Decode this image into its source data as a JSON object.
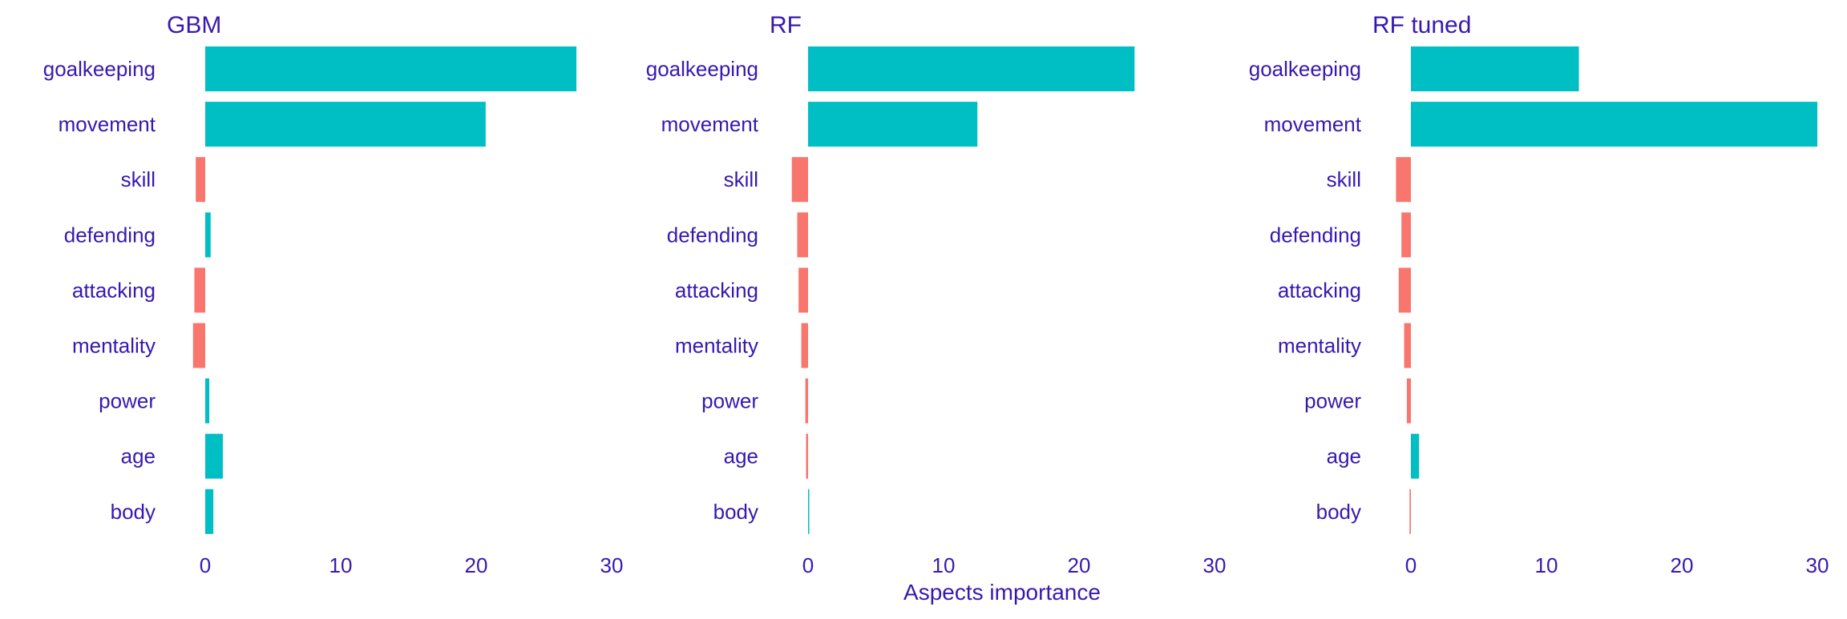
{
  "chart_data": {
    "type": "bar",
    "orientation": "horizontal",
    "xlabel": "Aspects importance",
    "xlim": [
      -1.5,
      30
    ],
    "xticks": [
      0,
      10,
      20,
      30
    ],
    "grid": false,
    "legend": "none",
    "colors": {
      "positive": "#00BFC4",
      "negative": "#F8766D",
      "text": "#3719B0"
    },
    "categories": [
      "goalkeeping",
      "movement",
      "skill",
      "defending",
      "attacking",
      "mentality",
      "power",
      "age",
      "body"
    ],
    "panels": [
      {
        "title": "GBM",
        "values": [
          27.4,
          20.7,
          -0.7,
          0.4,
          -0.8,
          -0.9,
          0.3,
          1.3,
          0.6
        ]
      },
      {
        "title": "RF",
        "values": [
          24.1,
          12.5,
          -1.2,
          -0.8,
          -0.7,
          -0.5,
          -0.2,
          -0.15,
          0.08
        ]
      },
      {
        "title": "RF tuned",
        "values": [
          12.4,
          30.0,
          -1.1,
          -0.7,
          -0.9,
          -0.5,
          -0.3,
          0.6,
          -0.1
        ]
      }
    ]
  }
}
